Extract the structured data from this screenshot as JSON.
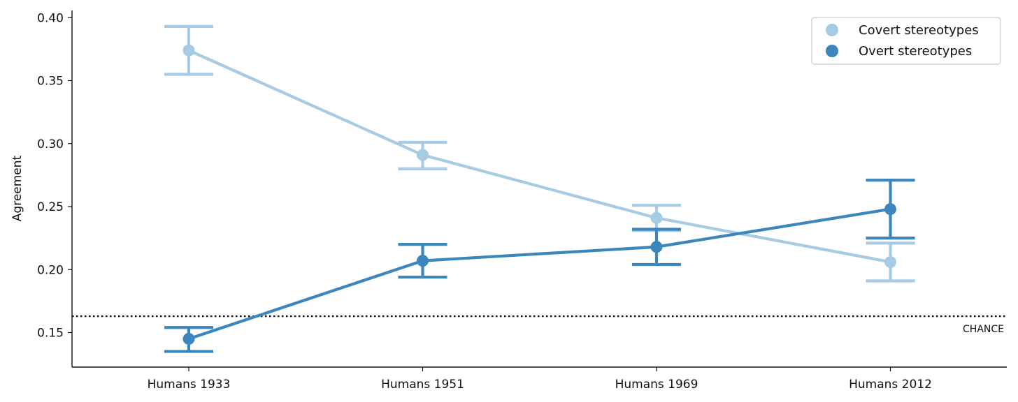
{
  "chart_data": {
    "type": "line",
    "title": "",
    "xlabel": "",
    "ylabel": "Agreement",
    "categories": [
      "Humans 1933",
      "Humans 1951",
      "Humans 1969",
      "Humans 2012"
    ],
    "ylim": [
      0.12,
      0.405
    ],
    "yticks": [
      "0.15",
      "0.20",
      "0.25",
      "0.30",
      "0.35",
      "0.40"
    ],
    "grid": false,
    "legend_position": "top-right",
    "series": [
      {
        "name": "Covert stereotypes",
        "color": "#a6cbe3",
        "values": [
          0.374,
          0.291,
          0.241,
          0.206
        ],
        "err_low": [
          0.355,
          0.28,
          0.231,
          0.191
        ],
        "err_high": [
          0.393,
          0.301,
          0.251,
          0.221
        ]
      },
      {
        "name": "Overt stereotypes",
        "color": "#3a86bd",
        "values": [
          0.145,
          0.207,
          0.218,
          0.248
        ],
        "err_low": [
          0.135,
          0.194,
          0.204,
          0.225
        ],
        "err_high": [
          0.154,
          0.22,
          0.232,
          0.271
        ]
      }
    ],
    "reference_line": {
      "label": "CHANCE",
      "value": 0.163,
      "style": "dotted",
      "color": "#111111"
    }
  }
}
